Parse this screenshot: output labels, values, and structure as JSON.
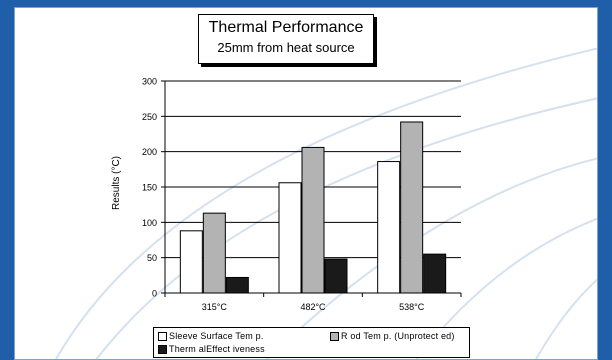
{
  "chart_data": {
    "type": "bar",
    "title": "Thermal Performance",
    "subtitle": "25mm from heat source",
    "ylabel": "Results (°C)",
    "xlabel": "",
    "categories": [
      "315°C",
      "482°C",
      "538°C"
    ],
    "ylim": [
      0,
      300
    ],
    "yticks": [
      0,
      50,
      100,
      150,
      200,
      250,
      300
    ],
    "grid": true,
    "legend_position": "bottom",
    "series": [
      {
        "name": "Sleeve Surface Tem p.",
        "values": [
          88,
          156,
          186
        ],
        "color": "#ffffff"
      },
      {
        "name": "R od Tem p. (Unprotect ed)",
        "values": [
          113,
          206,
          242
        ],
        "color": "#b3b3b3"
      },
      {
        "name": "Therm alEffect iveness",
        "values": [
          22,
          48,
          55
        ],
        "color": "#1a1a1a"
      }
    ]
  }
}
